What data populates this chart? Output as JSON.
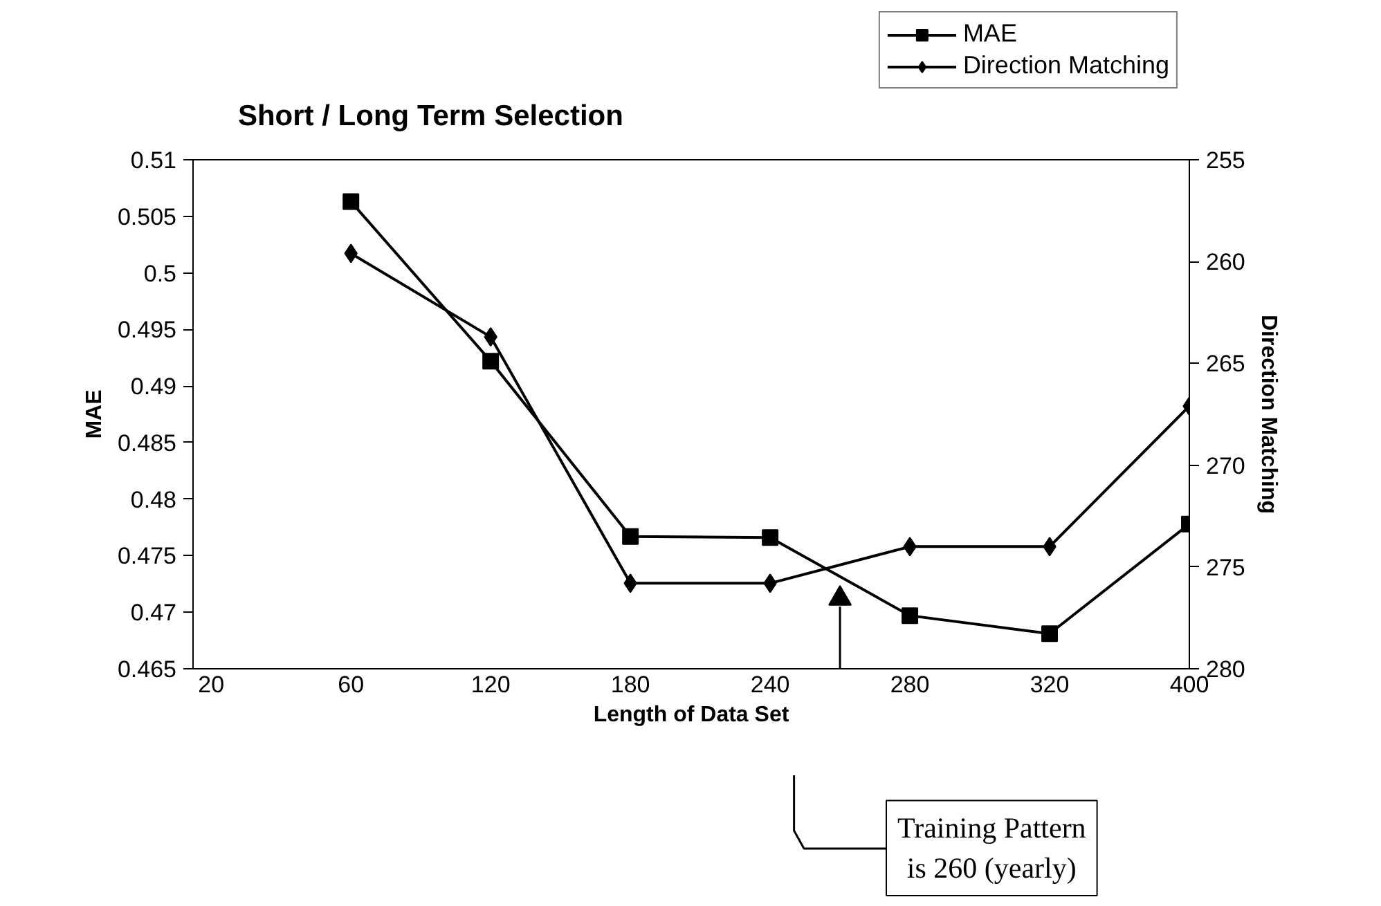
{
  "chart_data": {
    "type": "line",
    "title": "Short / Long  Term Selection",
    "xlabel": "Length of Data Set",
    "ylabel": "MAE",
    "y2label": "Direction Matching",
    "categories": [
      "20",
      "60",
      "120",
      "180",
      "240",
      "280",
      "320",
      "400"
    ],
    "series": [
      {
        "name": "MAE",
        "color": "#000000",
        "marker": "square",
        "values": [
          null,
          0.5063,
          0.4922,
          0.4767,
          0.4766,
          0.4697,
          0.4681,
          0.4778
        ]
      },
      {
        "name": "Direction Matching",
        "color": "#000000",
        "marker": "diamond",
        "axis": "y2",
        "values": [
          null,
          259.6,
          263.7,
          275.8,
          275.8,
          274.0,
          274.0,
          267.1
        ]
      }
    ],
    "ylim": [
      0.465,
      0.51
    ],
    "yticks": [
      0.465,
      0.47,
      0.475,
      0.48,
      0.485,
      0.49,
      0.495,
      0.5,
      0.505,
      0.51
    ],
    "y2lim": [
      280,
      255
    ],
    "y2ticks": [
      255,
      260,
      265,
      270,
      275,
      280
    ],
    "annotations": [
      "Training Pattern is 260 (yearly)"
    ],
    "legend": "top right",
    "grid": false,
    "line_style": "solid"
  }
}
